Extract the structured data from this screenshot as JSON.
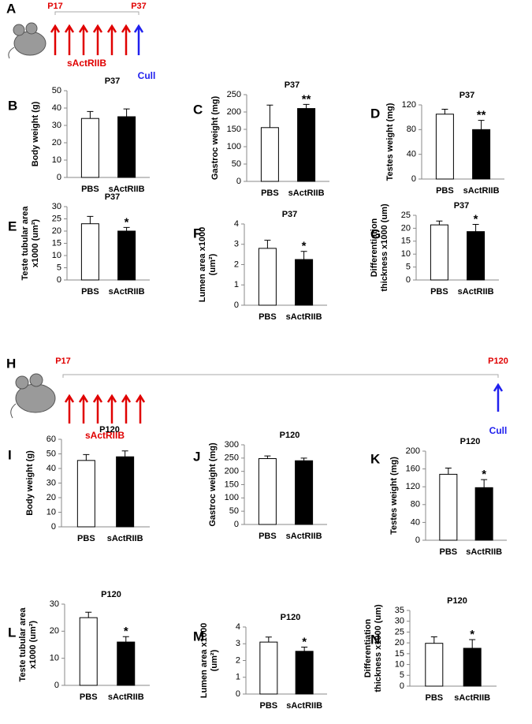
{
  "timelines": [
    {
      "panel": "A",
      "start": "P17",
      "end": "P37",
      "treatment": "sActRIIB",
      "endpoint": "Cull"
    },
    {
      "panel": "H",
      "start": "P17",
      "end": "P120",
      "treatment": "sActRIIB",
      "endpoint": "Cull"
    }
  ],
  "chart_data": [
    {
      "type": "bar",
      "panel": "B",
      "title": "P37",
      "ylabel": [
        "Body weight (g)"
      ],
      "categories": [
        "PBS",
        "sActRIIB"
      ],
      "values": [
        34,
        35
      ],
      "errors": [
        4,
        4.5
      ],
      "colors": [
        "#ffffff",
        "#000000"
      ],
      "ylim": [
        0,
        50
      ],
      "yticks": [
        0,
        10,
        20,
        30,
        40,
        50
      ]
    },
    {
      "type": "bar",
      "panel": "C",
      "title": "P37",
      "ylabel": [
        "Gastroc weight (mg)"
      ],
      "categories": [
        "PBS",
        "sActRIIB"
      ],
      "values": [
        155,
        210
      ],
      "errors": [
        65,
        12
      ],
      "colors": [
        "#ffffff",
        "#000000"
      ],
      "ylim": [
        0,
        250
      ],
      "yticks": [
        0,
        50,
        100,
        150,
        200,
        250
      ],
      "significance": "**"
    },
    {
      "type": "bar",
      "panel": "D",
      "title": "P37",
      "ylabel": [
        "Testes weight (mg)"
      ],
      "categories": [
        "PBS",
        "sActRIIB"
      ],
      "values": [
        105,
        80
      ],
      "errors": [
        8,
        15
      ],
      "colors": [
        "#ffffff",
        "#000000"
      ],
      "ylim": [
        0,
        120
      ],
      "yticks": [
        0,
        40,
        80,
        120
      ],
      "significance": "**"
    },
    {
      "type": "bar",
      "panel": "E",
      "title": "P37",
      "ylabel": [
        "Teste tubular area",
        "x1000 (um²)"
      ],
      "categories": [
        "PBS",
        "sActRIIB"
      ],
      "values": [
        23,
        20
      ],
      "errors": [
        3,
        1.5
      ],
      "colors": [
        "#ffffff",
        "#000000"
      ],
      "ylim": [
        0,
        30
      ],
      "yticks": [
        0,
        5,
        10,
        15,
        20,
        25,
        30
      ],
      "significance": "*"
    },
    {
      "type": "bar",
      "panel": "F",
      "title": "P37",
      "ylabel": [
        "Lumen area x1000",
        "(um²)"
      ],
      "categories": [
        "PBS",
        "sActRIIB"
      ],
      "values": [
        2.8,
        2.25
      ],
      "errors": [
        0.4,
        0.4
      ],
      "colors": [
        "#ffffff",
        "#000000"
      ],
      "ylim": [
        0,
        4
      ],
      "yticks": [
        0,
        1,
        2,
        3,
        4
      ],
      "significance": "*"
    },
    {
      "type": "bar",
      "panel": "G",
      "title": "P37",
      "ylabel": [
        "Differentiation",
        "thickness x1000 (um)"
      ],
      "categories": [
        "PBS",
        "sActRIIB"
      ],
      "values": [
        21.3,
        18.7
      ],
      "errors": [
        1.5,
        2.8
      ],
      "colors": [
        "#ffffff",
        "#000000"
      ],
      "ylim": [
        0,
        25
      ],
      "yticks": [
        0,
        5,
        10,
        15,
        20,
        25
      ],
      "significance": "*"
    },
    {
      "type": "bar",
      "panel": "I",
      "title": "P120",
      "ylabel": [
        "Body weight (g)"
      ],
      "categories": [
        "PBS",
        "sActRIIB"
      ],
      "values": [
        45.5,
        48
      ],
      "errors": [
        4,
        4
      ],
      "colors": [
        "#ffffff",
        "#000000"
      ],
      "ylim": [
        0,
        60
      ],
      "yticks": [
        0,
        10,
        20,
        30,
        40,
        50,
        60
      ]
    },
    {
      "type": "bar",
      "panel": "J",
      "title": "P120",
      "ylabel": [
        "Gastroc weight (mg)"
      ],
      "categories": [
        "PBS",
        "sActRIIB"
      ],
      "values": [
        248,
        240
      ],
      "errors": [
        10,
        10
      ],
      "colors": [
        "#ffffff",
        "#000000"
      ],
      "ylim": [
        0,
        300
      ],
      "yticks": [
        0,
        50,
        100,
        150,
        200,
        250,
        300
      ]
    },
    {
      "type": "bar",
      "panel": "K",
      "title": "P120",
      "ylabel": [
        "Testes weight (mg)"
      ],
      "categories": [
        "PBS",
        "sActRIIB"
      ],
      "values": [
        148,
        118
      ],
      "errors": [
        14,
        18
      ],
      "colors": [
        "#ffffff",
        "#000000"
      ],
      "ylim": [
        0,
        200
      ],
      "yticks": [
        0,
        40,
        80,
        120,
        160,
        200
      ],
      "significance": "*"
    },
    {
      "type": "bar",
      "panel": "L",
      "title": "P120",
      "ylabel": [
        "Teste tubular area",
        "x1000 (um²)"
      ],
      "categories": [
        "PBS",
        "sActRIIB"
      ],
      "values": [
        25,
        16
      ],
      "errors": [
        2,
        2
      ],
      "colors": [
        "#ffffff",
        "#000000"
      ],
      "ylim": [
        0,
        30
      ],
      "yticks": [
        0,
        10,
        20,
        30
      ],
      "significance": "*"
    },
    {
      "type": "bar",
      "panel": "M",
      "title": "P120",
      "ylabel": [
        "Lumen area x1000",
        "(um²)"
      ],
      "categories": [
        "PBS",
        "sActRIIB"
      ],
      "values": [
        3.1,
        2.55
      ],
      "errors": [
        0.3,
        0.25
      ],
      "colors": [
        "#ffffff",
        "#000000"
      ],
      "ylim": [
        0,
        4
      ],
      "yticks": [
        0,
        1,
        2,
        3,
        4
      ],
      "significance": "*"
    },
    {
      "type": "bar",
      "panel": "N",
      "title": "P120",
      "ylabel": [
        "Differentiation",
        "thickness x1000 (um)"
      ],
      "categories": [
        "PBS",
        "sActRIIB"
      ],
      "values": [
        19.8,
        17.5
      ],
      "errors": [
        3,
        4
      ],
      "colors": [
        "#ffffff",
        "#000000"
      ],
      "ylim": [
        0,
        35
      ],
      "yticks": [
        0,
        5,
        10,
        15,
        20,
        25,
        30,
        35
      ],
      "significance": "*"
    }
  ]
}
